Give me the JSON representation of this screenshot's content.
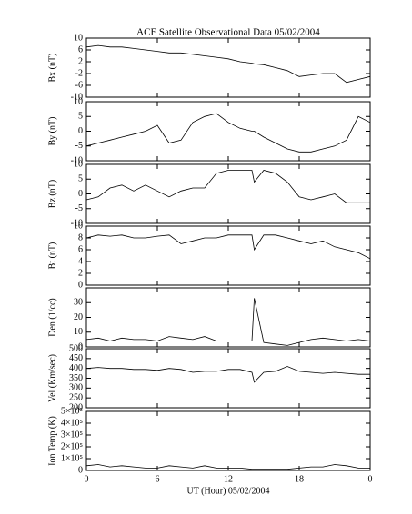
{
  "chart_data": [
    {
      "type": "line",
      "title": "ACE Satellite Observational Data   05/02/2004",
      "ylabel": "Bx (nT)",
      "x": [
        0,
        1,
        2,
        3,
        4,
        5,
        6,
        7,
        8,
        9,
        10,
        11,
        12,
        13,
        14,
        14.2,
        15,
        16,
        17,
        18,
        19,
        20,
        21,
        22,
        23,
        24
      ],
      "series": [
        {
          "color": "#000000",
          "values": [
            7,
            7.5,
            7,
            7,
            6.5,
            6,
            5.5,
            5,
            5,
            4.5,
            4,
            3.5,
            3,
            2,
            1.5,
            1.3,
            1,
            0,
            -1,
            -3,
            -2.5,
            -2,
            -2,
            -5,
            -4,
            -3
          ]
        }
      ],
      "ylim": [
        -10,
        10
      ],
      "yticks": [
        -10,
        -6,
        -2,
        2,
        6,
        10
      ]
    },
    {
      "type": "line",
      "ylabel": "By (nT)",
      "x": [
        0,
        1,
        2,
        3,
        4,
        5,
        6,
        7,
        8,
        9,
        10,
        11,
        12,
        13,
        14,
        14.2,
        15,
        16,
        17,
        18,
        19,
        20,
        21,
        22,
        23,
        24
      ],
      "series": [
        {
          "color": "#000000",
          "values": [
            -5,
            -4,
            -3,
            -2,
            -1,
            0,
            2,
            -4,
            -3,
            3,
            5,
            6,
            3,
            1,
            0,
            0,
            -2,
            -4,
            -6,
            -7,
            -7,
            -6,
            -5,
            -3,
            5,
            3
          ]
        }
      ],
      "ylim": [
        -10,
        10
      ],
      "yticks": [
        -10,
        -5,
        0,
        5,
        10
      ]
    },
    {
      "type": "line",
      "ylabel": "Bz (nT)",
      "x": [
        0,
        1,
        2,
        3,
        4,
        5,
        6,
        7,
        8,
        9,
        10,
        11,
        12,
        13,
        14,
        14.2,
        15,
        16,
        17,
        18,
        19,
        20,
        21,
        22,
        23,
        24
      ],
      "series": [
        {
          "color": "#000000",
          "values": [
            -2,
            -1,
            2,
            3,
            1,
            3,
            1,
            -1,
            1,
            2,
            2,
            7,
            8,
            8,
            8,
            4,
            8,
            7,
            4,
            -1,
            -2,
            -1,
            0,
            -3,
            -3,
            -3
          ]
        }
      ],
      "ylim": [
        -10,
        10
      ],
      "yticks": [
        -10,
        -5,
        0,
        5,
        10
      ]
    },
    {
      "type": "line",
      "ylabel": "Bt (nT)",
      "x": [
        0,
        1,
        2,
        3,
        4,
        5,
        6,
        7,
        8,
        9,
        10,
        11,
        12,
        13,
        14,
        14.2,
        15,
        16,
        17,
        18,
        19,
        20,
        21,
        22,
        23,
        24
      ],
      "series": [
        {
          "color": "#000000",
          "values": [
            8,
            8.5,
            8.3,
            8.5,
            8,
            8,
            8.3,
            8.5,
            7,
            7.5,
            8,
            8,
            8.5,
            8.5,
            8.5,
            6,
            8.5,
            8.5,
            8,
            7.5,
            7,
            7.5,
            6.5,
            6,
            5.5,
            4.5
          ]
        }
      ],
      "ylim": [
        0,
        10
      ],
      "yticks": [
        0,
        2,
        4,
        6,
        8,
        10
      ]
    },
    {
      "type": "line",
      "ylabel": "Den (1/cc)",
      "x": [
        0,
        1,
        2,
        3,
        4,
        5,
        6,
        7,
        8,
        9,
        10,
        11,
        12,
        13,
        14,
        14.2,
        15,
        16,
        17,
        18,
        19,
        20,
        21,
        22,
        23,
        24
      ],
      "series": [
        {
          "color": "#000000",
          "values": [
            5,
            6,
            4,
            6,
            5,
            5,
            4,
            7,
            6,
            5,
            7,
            4,
            4,
            4,
            4,
            33,
            3,
            2,
            1,
            3,
            5,
            6,
            5,
            4,
            5,
            4
          ]
        }
      ],
      "ylim": [
        0,
        40
      ],
      "yticks": [
        0,
        10,
        20,
        30
      ]
    },
    {
      "type": "line",
      "ylabel": "Vel (Km/sec)",
      "x": [
        0,
        1,
        2,
        3,
        4,
        5,
        6,
        7,
        8,
        9,
        10,
        11,
        12,
        13,
        14,
        14.2,
        15,
        16,
        17,
        18,
        19,
        20,
        21,
        22,
        23,
        24
      ],
      "series": [
        {
          "color": "#000000",
          "values": [
            400,
            405,
            400,
            400,
            395,
            395,
            390,
            400,
            395,
            380,
            385,
            385,
            395,
            395,
            380,
            330,
            380,
            385,
            410,
            385,
            380,
            375,
            380,
            375,
            370,
            370
          ]
        }
      ],
      "ylim": [
        200,
        500
      ],
      "yticks": [
        200,
        250,
        300,
        350,
        400,
        450,
        500
      ]
    },
    {
      "type": "line",
      "ylabel": "Ion Temp (K)",
      "xlabel": "UT (Hour)   05/02/2004",
      "x": [
        0,
        1,
        2,
        3,
        4,
        5,
        6,
        7,
        8,
        9,
        10,
        11,
        12,
        13,
        14,
        14.2,
        15,
        16,
        17,
        18,
        19,
        20,
        21,
        22,
        23,
        24
      ],
      "series": [
        {
          "color": "#000000",
          "values": [
            40000,
            50000,
            30000,
            40000,
            30000,
            20000,
            20000,
            40000,
            30000,
            20000,
            40000,
            20000,
            20000,
            20000,
            10000,
            10000,
            10000,
            10000,
            10000,
            20000,
            30000,
            30000,
            50000,
            40000,
            20000,
            20000
          ]
        }
      ],
      "ylim": [
        0,
        500000
      ],
      "yticks": [
        0,
        {
          "value": 100000,
          "label": "1×10⁵"
        },
        {
          "value": 200000,
          "label": "2×10⁵"
        },
        {
          "value": 300000,
          "label": "3×10⁵"
        },
        {
          "value": 400000,
          "label": "4×10⁵"
        },
        {
          "value": 500000,
          "label": "5×10⁵"
        }
      ],
      "xlim": [
        0,
        24
      ],
      "xticks": [
        0,
        6,
        12,
        18,
        {
          "value": 24,
          "label": "0"
        }
      ]
    }
  ]
}
